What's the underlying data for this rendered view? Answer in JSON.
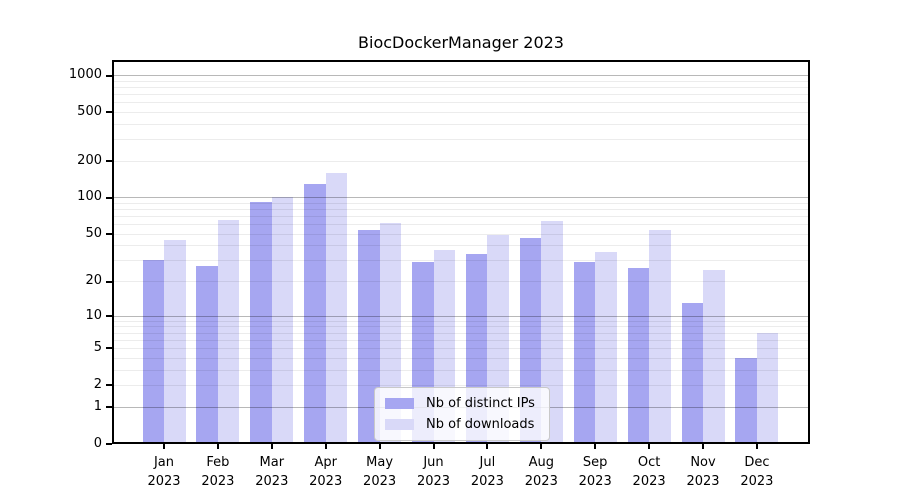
{
  "title": "BiocDockerManager 2023",
  "chart_data": {
    "type": "bar",
    "title": "BiocDockerManager 2023",
    "categories": [
      "Jan",
      "Feb",
      "Mar",
      "Apr",
      "May",
      "Jun",
      "Jul",
      "Aug",
      "Sep",
      "Oct",
      "Nov",
      "Dec"
    ],
    "year": "2023",
    "series": [
      {
        "name": "Nb of distinct IPs",
        "color": "#a6a6f1",
        "values": [
          30,
          27,
          92,
          129,
          54,
          29,
          34,
          46,
          29,
          26,
          13,
          4
        ]
      },
      {
        "name": "Nb of downloads",
        "color": "#d9d9f8",
        "values": [
          44,
          65,
          100,
          160,
          61,
          37,
          49,
          64,
          35,
          54,
          25,
          7
        ]
      }
    ],
    "xlabel": "",
    "ylabel": "",
    "yscale": "log1p",
    "ylim": [
      0,
      1330
    ],
    "ytick_values": [
      1000,
      500,
      200,
      100,
      50,
      20,
      10,
      5,
      2,
      1,
      0
    ],
    "ytick_labels": [
      "1000",
      "500",
      "200",
      "100",
      "50",
      "20",
      "10",
      "5",
      "2",
      "1",
      "0"
    ],
    "minor_grid_values": [
      2,
      3,
      4,
      5,
      6,
      7,
      8,
      9,
      20,
      30,
      40,
      50,
      60,
      70,
      80,
      90,
      200,
      300,
      400,
      500,
      600,
      700,
      800,
      900
    ],
    "major_grid_values": [
      1,
      10,
      100,
      1000
    ],
    "grid": "on",
    "legend_position": "lower center"
  }
}
